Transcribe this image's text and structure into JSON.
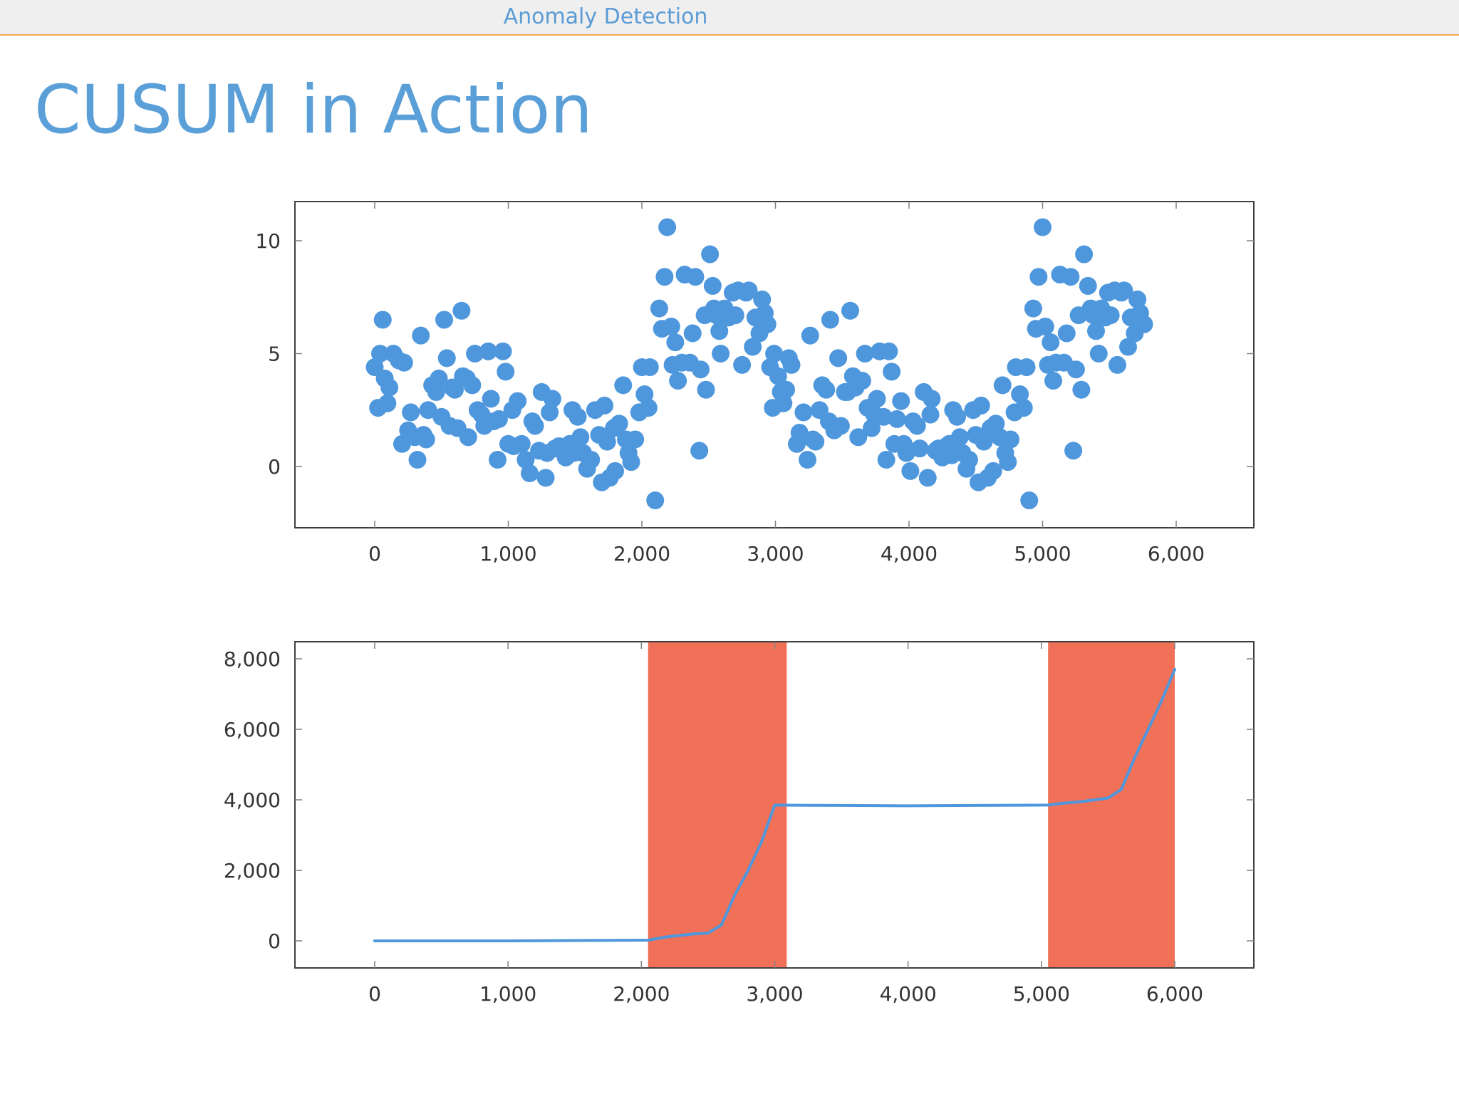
{
  "header": {
    "section_title": "Anomaly Detection"
  },
  "slide": {
    "title": "CUSUM in Action"
  },
  "colors": {
    "accent": "#5b9bd5",
    "series": "#4f97dd",
    "alarm_region": "#f07058",
    "header_rule": "#f0a850"
  },
  "chart_data": [
    {
      "type": "scatter",
      "title": "",
      "xlabel": "",
      "ylabel": "",
      "xlim": [
        -600,
        6600
      ],
      "ylim": [
        -2.7,
        11.8
      ],
      "xticks": [
        0,
        1000,
        2000,
        3000,
        4000,
        5000,
        6000
      ],
      "xtick_labels": [
        "0",
        "1,000",
        "2,000",
        "3,000",
        "4,000",
        "5,000",
        "6,000"
      ],
      "yticks": [
        0,
        5,
        10
      ],
      "ytick_labels": [
        "0",
        "5",
        "10"
      ],
      "grid": false,
      "points": [
        [
          0,
          4.4
        ],
        [
          25,
          2.6
        ],
        [
          40,
          5.0
        ],
        [
          60,
          6.5
        ],
        [
          75,
          3.9
        ],
        [
          95,
          2.8
        ],
        [
          110,
          3.5
        ],
        [
          140,
          5.0
        ],
        [
          180,
          4.7
        ],
        [
          205,
          1.0
        ],
        [
          220,
          4.6
        ],
        [
          250,
          1.6
        ],
        [
          270,
          2.4
        ],
        [
          300,
          1.3
        ],
        [
          320,
          0.3
        ],
        [
          345,
          5.8
        ],
        [
          365,
          1.4
        ],
        [
          385,
          1.2
        ],
        [
          400,
          2.5
        ],
        [
          430,
          3.6
        ],
        [
          460,
          3.3
        ],
        [
          480,
          3.9
        ],
        [
          500,
          2.2
        ],
        [
          520,
          6.5
        ],
        [
          540,
          4.8
        ],
        [
          560,
          1.8
        ],
        [
          580,
          3.5
        ],
        [
          600,
          3.4
        ],
        [
          620,
          1.7
        ],
        [
          650,
          6.9
        ],
        [
          660,
          4.0
        ],
        [
          690,
          3.9
        ],
        [
          700,
          1.3
        ],
        [
          730,
          3.6
        ],
        [
          750,
          5.0
        ],
        [
          770,
          2.5
        ],
        [
          800,
          2.3
        ],
        [
          820,
          1.8
        ],
        [
          850,
          5.1
        ],
        [
          870,
          3.0
        ],
        [
          890,
          2.0
        ],
        [
          920,
          0.3
        ],
        [
          930,
          2.1
        ],
        [
          960,
          5.1
        ],
        [
          980,
          4.2
        ],
        [
          1000,
          1.0
        ],
        [
          1030,
          2.5
        ],
        [
          1040,
          0.9
        ],
        [
          1070,
          2.9
        ],
        [
          1100,
          1.0
        ],
        [
          1130,
          0.3
        ],
        [
          1160,
          -0.3
        ],
        [
          1180,
          2.0
        ],
        [
          1200,
          1.8
        ],
        [
          1230,
          0.7
        ],
        [
          1250,
          3.3
        ],
        [
          1280,
          -0.5
        ],
        [
          1290,
          0.6
        ],
        [
          1310,
          2.4
        ],
        [
          1330,
          3.0
        ],
        [
          1350,
          0.8
        ],
        [
          1380,
          0.9
        ],
        [
          1410,
          0.8
        ],
        [
          1430,
          0.4
        ],
        [
          1460,
          1.0
        ],
        [
          1480,
          2.5
        ],
        [
          1490,
          0.6
        ],
        [
          1520,
          2.2
        ],
        [
          1540,
          1.3
        ],
        [
          1560,
          0.6
        ],
        [
          1590,
          -0.1
        ],
        [
          1620,
          0.3
        ],
        [
          1650,
          2.5
        ],
        [
          1680,
          1.4
        ],
        [
          1700,
          -0.7
        ],
        [
          1720,
          2.7
        ],
        [
          1740,
          1.1
        ],
        [
          1760,
          -0.5
        ],
        [
          1790,
          1.7
        ],
        [
          1800,
          -0.2
        ],
        [
          1830,
          1.9
        ],
        [
          1860,
          3.6
        ],
        [
          1880,
          1.2
        ],
        [
          1900,
          0.6
        ],
        [
          1920,
          0.2
        ],
        [
          1950,
          1.2
        ],
        [
          1980,
          2.4
        ],
        [
          2000,
          4.4
        ],
        [
          2020,
          3.2
        ],
        [
          2050,
          2.6
        ],
        [
          2060,
          4.4
        ],
        [
          2100,
          -1.5
        ],
        [
          2130,
          7.0
        ],
        [
          2150,
          6.1
        ],
        [
          2170,
          8.4
        ],
        [
          2190,
          10.6
        ],
        [
          2220,
          6.2
        ],
        [
          2230,
          4.5
        ],
        [
          2250,
          5.5
        ],
        [
          2270,
          3.8
        ],
        [
          2300,
          4.6
        ],
        [
          2320,
          8.5
        ],
        [
          2360,
          4.6
        ],
        [
          2380,
          5.9
        ],
        [
          2400,
          8.4
        ],
        [
          2430,
          0.7
        ],
        [
          2440,
          4.3
        ],
        [
          2470,
          6.7
        ],
        [
          2480,
          3.4
        ],
        [
          2510,
          9.4
        ],
        [
          2530,
          8.0
        ],
        [
          2540,
          7.0
        ],
        [
          2560,
          6.7
        ],
        [
          2580,
          6.0
        ],
        [
          2590,
          5.0
        ],
        [
          2620,
          7.0
        ],
        [
          2650,
          6.6
        ],
        [
          2680,
          7.7
        ],
        [
          2700,
          6.7
        ],
        [
          2720,
          7.8
        ],
        [
          2750,
          4.5
        ],
        [
          2780,
          7.7
        ],
        [
          2800,
          7.8
        ],
        [
          2830,
          5.3
        ],
        [
          2850,
          6.6
        ],
        [
          2880,
          5.9
        ],
        [
          2900,
          7.4
        ],
        [
          2920,
          6.8
        ],
        [
          2940,
          6.3
        ],
        [
          2960,
          4.4
        ],
        [
          2980,
          2.6
        ],
        [
          2990,
          5.0
        ],
        [
          3020,
          4.0
        ],
        [
          3040,
          3.3
        ],
        [
          3060,
          2.8
        ],
        [
          3080,
          3.4
        ],
        [
          3100,
          4.8
        ],
        [
          3120,
          4.5
        ],
        [
          3160,
          1.0
        ],
        [
          3180,
          1.5
        ],
        [
          3210,
          2.4
        ],
        [
          3240,
          0.3
        ],
        [
          3260,
          5.8
        ],
        [
          3280,
          1.2
        ],
        [
          3300,
          1.1
        ],
        [
          3330,
          2.5
        ],
        [
          3350,
          3.6
        ],
        [
          3380,
          3.4
        ],
        [
          3400,
          2.0
        ],
        [
          3410,
          6.5
        ],
        [
          3440,
          1.6
        ],
        [
          3470,
          4.8
        ],
        [
          3490,
          1.8
        ],
        [
          3520,
          3.3
        ],
        [
          3540,
          3.3
        ],
        [
          3560,
          6.9
        ],
        [
          3580,
          4.0
        ],
        [
          3600,
          3.5
        ],
        [
          3620,
          1.3
        ],
        [
          3650,
          3.8
        ],
        [
          3670,
          5.0
        ],
        [
          3690,
          2.6
        ],
        [
          3720,
          1.7
        ],
        [
          3740,
          2.3
        ],
        [
          3760,
          3.0
        ],
        [
          3780,
          5.1
        ],
        [
          3810,
          2.2
        ],
        [
          3830,
          0.3
        ],
        [
          3850,
          5.1
        ],
        [
          3870,
          4.2
        ],
        [
          3890,
          1.0
        ],
        [
          3910,
          2.1
        ],
        [
          3940,
          2.9
        ],
        [
          3960,
          1.0
        ],
        [
          3980,
          0.6
        ],
        [
          4010,
          -0.2
        ],
        [
          4030,
          2.0
        ],
        [
          4060,
          1.8
        ],
        [
          4080,
          0.8
        ],
        [
          4110,
          3.3
        ],
        [
          4140,
          -0.5
        ],
        [
          4160,
          2.3
        ],
        [
          4170,
          3.0
        ],
        [
          4200,
          0.7
        ],
        [
          4220,
          0.8
        ],
        [
          4250,
          0.4
        ],
        [
          4280,
          0.9
        ],
        [
          4300,
          1.0
        ],
        [
          4320,
          0.5
        ],
        [
          4330,
          2.5
        ],
        [
          4360,
          2.2
        ],
        [
          4380,
          1.3
        ],
        [
          4400,
          0.6
        ],
        [
          4430,
          -0.1
        ],
        [
          4450,
          0.3
        ],
        [
          4480,
          2.5
        ],
        [
          4500,
          1.4
        ],
        [
          4520,
          -0.7
        ],
        [
          4540,
          2.7
        ],
        [
          4560,
          1.1
        ],
        [
          4590,
          -0.5
        ],
        [
          4610,
          1.7
        ],
        [
          4630,
          -0.2
        ],
        [
          4650,
          1.9
        ],
        [
          4680,
          1.3
        ],
        [
          4700,
          3.6
        ],
        [
          4720,
          0.6
        ],
        [
          4740,
          0.2
        ],
        [
          4760,
          1.2
        ],
        [
          4790,
          2.4
        ],
        [
          4800,
          4.4
        ],
        [
          4830,
          3.2
        ],
        [
          4860,
          2.6
        ],
        [
          4880,
          4.4
        ],
        [
          4900,
          -1.5
        ],
        [
          4930,
          7.0
        ],
        [
          4950,
          6.1
        ],
        [
          4970,
          8.4
        ],
        [
          5000,
          10.6
        ],
        [
          5020,
          6.2
        ],
        [
          5040,
          4.5
        ],
        [
          5060,
          5.5
        ],
        [
          5080,
          3.8
        ],
        [
          5100,
          4.6
        ],
        [
          5130,
          8.5
        ],
        [
          5160,
          4.6
        ],
        [
          5180,
          5.9
        ],
        [
          5210,
          8.4
        ],
        [
          5230,
          0.7
        ],
        [
          5250,
          4.3
        ],
        [
          5270,
          6.7
        ],
        [
          5290,
          3.4
        ],
        [
          5310,
          9.4
        ],
        [
          5340,
          8.0
        ],
        [
          5360,
          7.0
        ],
        [
          5380,
          6.7
        ],
        [
          5400,
          6.0
        ],
        [
          5420,
          5.0
        ],
        [
          5440,
          7.0
        ],
        [
          5470,
          6.6
        ],
        [
          5490,
          7.7
        ],
        [
          5510,
          6.7
        ],
        [
          5540,
          7.8
        ],
        [
          5560,
          4.5
        ],
        [
          5590,
          7.7
        ],
        [
          5610,
          7.8
        ],
        [
          5640,
          5.3
        ],
        [
          5660,
          6.6
        ],
        [
          5690,
          5.9
        ],
        [
          5710,
          7.4
        ],
        [
          5730,
          6.8
        ],
        [
          5760,
          6.3
        ]
      ]
    },
    {
      "type": "line",
      "title": "",
      "xlabel": "",
      "ylabel": "",
      "xlim": [
        -600,
        6600
      ],
      "ylim": [
        -800,
        8800
      ],
      "xticks": [
        0,
        1000,
        2000,
        3000,
        4000,
        5000,
        6000
      ],
      "xtick_labels": [
        "0",
        "1,000",
        "2,000",
        "3,000",
        "4,000",
        "5,000",
        "6,000"
      ],
      "yticks": [
        0,
        2000,
        4000,
        6000,
        8000
      ],
      "ytick_labels": [
        "0",
        "2,000",
        "4,000",
        "6,000",
        "8,000"
      ],
      "grid": false,
      "highlighted_ranges": [
        [
          2050,
          3090
        ],
        [
          5050,
          6000
        ]
      ],
      "series": [
        {
          "x": [
            0,
            500,
            1000,
            1500,
            2050,
            2200,
            2400,
            2500,
            2600,
            2700,
            2800,
            2900,
            3000,
            3500,
            4000,
            4500,
            5050,
            5150,
            5300,
            5500,
            5600,
            5700,
            5800,
            5900,
            6000
          ],
          "y": [
            0,
            0,
            0,
            10,
            20,
            120,
            200,
            220,
            450,
            1300,
            2000,
            2800,
            3850,
            3840,
            3830,
            3840,
            3850,
            3900,
            3950,
            4050,
            4300,
            5200,
            6000,
            6800,
            7700
          ]
        }
      ]
    }
  ]
}
